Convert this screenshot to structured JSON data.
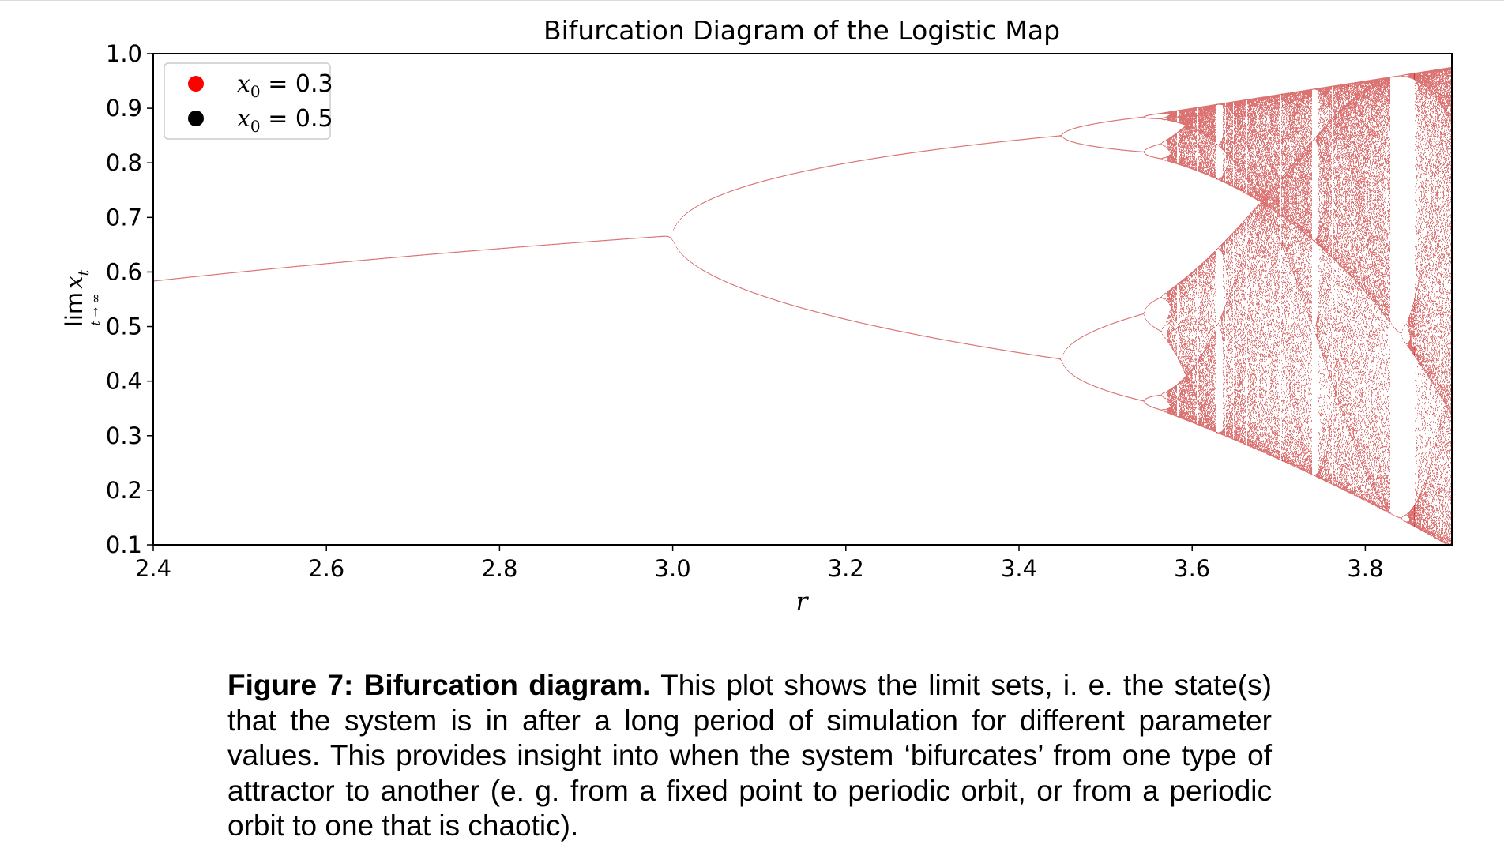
{
  "chart_data": {
    "type": "scatter",
    "title": "Bifurcation Diagram of the Logistic Map",
    "xlabel": "r",
    "ylabel": "lim x_t (t → ∞)",
    "xlim": [
      2.4,
      3.9
    ],
    "ylim": [
      0.1,
      1.0
    ],
    "xticks": [
      "2.4",
      "2.6",
      "2.8",
      "3.0",
      "3.2",
      "3.4",
      "3.6",
      "3.8"
    ],
    "yticks": [
      "0.1",
      "0.2",
      "0.3",
      "0.4",
      "0.5",
      "0.6",
      "0.7",
      "0.8",
      "0.9",
      "1.0"
    ],
    "legend_position": "top-left",
    "series": [
      {
        "name": "x0 = 0.3",
        "x0": 0.3,
        "color": "#ff0000"
      },
      {
        "name": "x0 = 0.5",
        "x0": 0.5,
        "color": "#000000"
      }
    ],
    "plot_color": "#c00000",
    "key_points": [
      {
        "r": 2.4,
        "x": 0.583
      },
      {
        "r": 3.0,
        "x": 0.667
      },
      {
        "r": 3.449,
        "x": [
          0.44,
          0.852
        ]
      },
      {
        "r": 3.9,
        "x": [
          0.095,
          0.975
        ]
      }
    ],
    "grid": false
  },
  "legend": {
    "entry1_symbol": "x",
    "entry1_sub": "0",
    "entry1_value": " = 0.3",
    "entry2_symbol": "x",
    "entry2_sub": "0",
    "entry2_value": " = 0.5"
  },
  "ylabel_parts": {
    "lim": "lim",
    "sub": "t → ∞",
    "var": "x",
    "var_sub": "t"
  },
  "caption": {
    "label": "Figure 7:",
    "heading": "Bifurcation diagram.",
    "body": "This plot shows the limit sets, i. e. the state(s) that the system is in after a long period of simulation for different parameter values. This provides insight into when the system ‘bifurcates’ from one type of attractor to another (e. g. from a fixed point to periodic orbit, or from a periodic orbit to one that is chaotic)."
  }
}
